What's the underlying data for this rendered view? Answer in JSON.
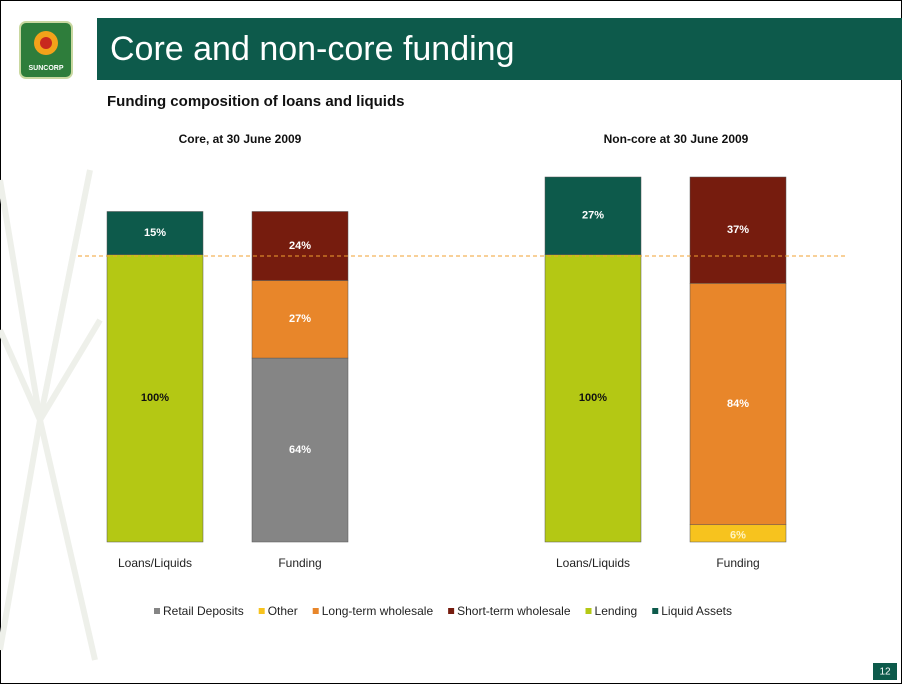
{
  "header": {
    "logo_text": "SUNCORP",
    "title": "Core and non-core funding"
  },
  "page_number": 12,
  "chart_data": {
    "type": "bar",
    "stacked": true,
    "subtitle": "Funding composition of loans and liquids",
    "group_titles": [
      "Core, at 30 June 2009",
      "Non-core  at 30 June 2009"
    ],
    "categories": [
      "Loans/Liquids",
      "Funding",
      "Loans/Liquids",
      "Funding"
    ],
    "series": [
      {
        "name": "Retail Deposits",
        "color": "#858585",
        "values": [
          null,
          64,
          null,
          null
        ],
        "value_labels": [
          null,
          "64%",
          null,
          null
        ]
      },
      {
        "name": "Other",
        "color": "#f7c31e",
        "values": [
          null,
          null,
          null,
          6
        ],
        "value_labels": [
          null,
          null,
          null,
          "6%"
        ]
      },
      {
        "name": "Long-term wholesale",
        "color": "#e8862a",
        "values": [
          null,
          27,
          null,
          84
        ],
        "value_labels": [
          null,
          "27%",
          null,
          "84%"
        ]
      },
      {
        "name": "Short-term wholesale",
        "color": "#761c0e",
        "values": [
          null,
          24,
          null,
          37
        ],
        "value_labels": [
          null,
          "24%",
          null,
          "37%"
        ]
      },
      {
        "name": "Lending",
        "color": "#b4c814",
        "values": [
          100,
          null,
          100,
          null
        ],
        "value_labels": [
          "100%",
          null,
          "100%",
          null
        ]
      },
      {
        "name": "Liquid Assets",
        "color": "#0d5a4b",
        "values": [
          15,
          null,
          27,
          null
        ],
        "value_labels": [
          "15%",
          null,
          "27%",
          null
        ]
      }
    ]
  }
}
